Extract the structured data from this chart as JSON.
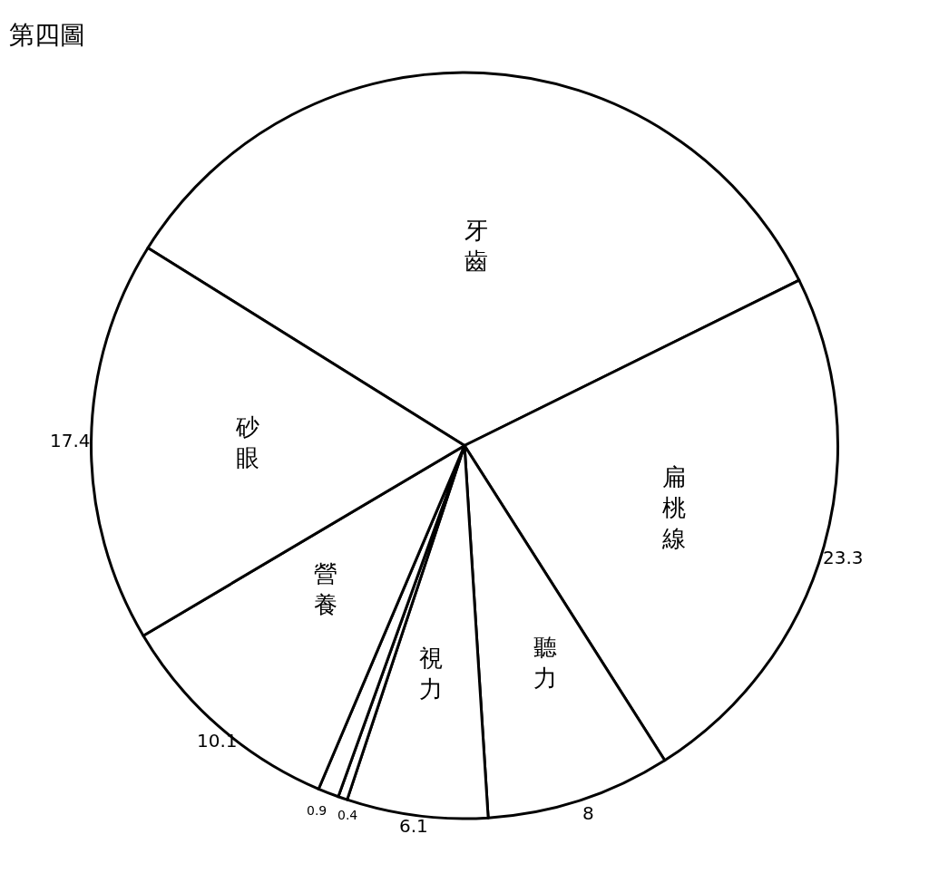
{
  "chart_data": {
    "type": "pie",
    "title": "第四圖",
    "categories": [
      "牙齒",
      "扁桃線",
      "聽力",
      "視力",
      null,
      null,
      "營養",
      "砂眼"
    ],
    "values": [
      33.8,
      23.3,
      8,
      6.1,
      0.4,
      0.9,
      10.1,
      17.4
    ],
    "value_labels": [
      null,
      "23.3",
      "8",
      "6.1",
      "0.4",
      "0.9",
      "10.1",
      "17.4"
    ],
    "colors": [
      "#ffffff",
      "#ffffff",
      "#ffffff",
      "#ffffff",
      "#ffffff",
      "#ffffff",
      "#ffffff",
      "#ffffff"
    ],
    "legend": false
  }
}
